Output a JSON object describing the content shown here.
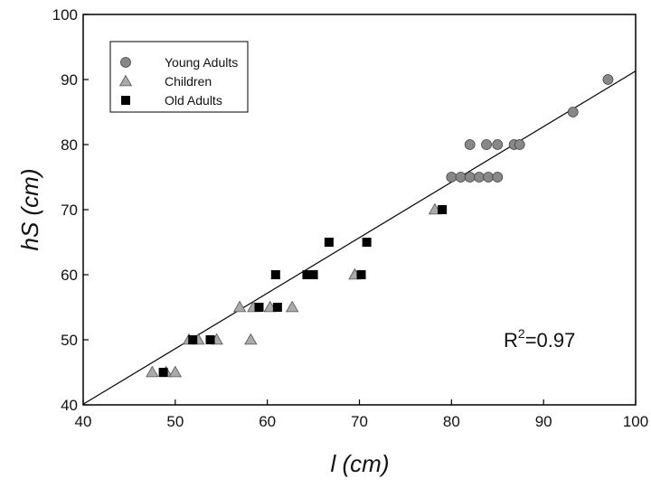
{
  "chart_data": {
    "type": "scatter",
    "title": "",
    "xlabel": "l (cm)",
    "ylabel": "hS (cm)",
    "xlim": [
      40,
      100
    ],
    "ylim": [
      40,
      100
    ],
    "xticks": [
      40,
      50,
      60,
      70,
      80,
      90,
      100
    ],
    "yticks": [
      40,
      50,
      60,
      70,
      80,
      90,
      100
    ],
    "grid": false,
    "legend_position": "top-left",
    "annotation": {
      "base": "R",
      "sup": "2",
      "rest": "=0.97"
    },
    "fit_line": {
      "x": [
        40,
        100
      ],
      "y": [
        40.1,
        91.3
      ]
    },
    "series": [
      {
        "name": "Young Adults",
        "marker": "circle",
        "color": "#888888",
        "points": [
          [
            97.0,
            90
          ],
          [
            93.2,
            85
          ],
          [
            82.0,
            80
          ],
          [
            83.8,
            80
          ],
          [
            85.0,
            80
          ],
          [
            86.8,
            80
          ],
          [
            87.4,
            80
          ],
          [
            80.0,
            75
          ],
          [
            81.0,
            75
          ],
          [
            82.0,
            75
          ],
          [
            83.0,
            75
          ],
          [
            84.0,
            75
          ],
          [
            85.0,
            75
          ]
        ]
      },
      {
        "name": "Children",
        "marker": "triangle",
        "color": "#aaaaaa",
        "points": [
          [
            47.5,
            45
          ],
          [
            49.0,
            45
          ],
          [
            50.0,
            45
          ],
          [
            51.5,
            50
          ],
          [
            52.5,
            50
          ],
          [
            54.5,
            50
          ],
          [
            58.2,
            50
          ],
          [
            57.0,
            55
          ],
          [
            58.5,
            55
          ],
          [
            60.3,
            55
          ],
          [
            62.7,
            55
          ],
          [
            69.5,
            60
          ],
          [
            78.2,
            70
          ]
        ]
      },
      {
        "name": "Old Adults",
        "marker": "square",
        "color": "#000000",
        "points": [
          [
            48.7,
            45
          ],
          [
            51.9,
            50
          ],
          [
            53.8,
            50
          ],
          [
            59.1,
            55
          ],
          [
            61.1,
            55
          ],
          [
            60.9,
            60
          ],
          [
            64.3,
            60
          ],
          [
            65.0,
            60
          ],
          [
            70.2,
            60
          ],
          [
            66.7,
            65
          ],
          [
            70.8,
            65
          ],
          [
            79.0,
            70
          ]
        ]
      }
    ]
  }
}
